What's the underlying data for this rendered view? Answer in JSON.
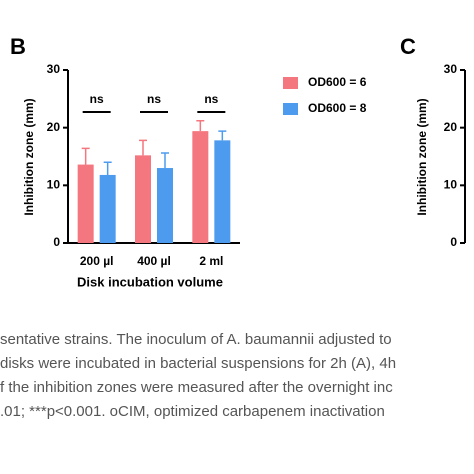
{
  "chart_data": [
    {
      "type": "bar",
      "panel": "B",
      "x_label": "Disk incubation volume",
      "y_label": "Inhibition zone (mm)",
      "categories": [
        "200 µl",
        "400 µl",
        "2 ml"
      ],
      "series": [
        {
          "name": "OD600 = 6",
          "color": "#f4777f",
          "values": [
            13.6,
            15.2,
            19.4
          ],
          "errors": [
            2.8,
            2.6,
            1.8
          ]
        },
        {
          "name": "OD600 = 8",
          "color": "#4d9bef",
          "values": [
            11.8,
            13.0,
            17.8
          ],
          "errors": [
            2.2,
            2.6,
            1.6
          ]
        }
      ],
      "annotations": [
        "ns",
        "ns",
        "ns"
      ],
      "ylim": [
        0,
        30
      ],
      "yticks": [
        0,
        10,
        20,
        30
      ],
      "legend": "right"
    },
    {
      "type": "bar",
      "panel": "C",
      "y_label": "Inhibition zone (mm)",
      "ylim": [
        0,
        30
      ],
      "yticks": [
        0,
        10,
        20,
        30
      ]
    }
  ],
  "caption_lines": [
    "sentative strains. The inoculum of A. baumannii adjusted to",
    "disks were incubated in bacterial suspensions for 2h (A), 4h",
    "f the inhibition zones were measured after the overnight inc",
    ".01; ***p<0.001. oCIM, optimized carbapenem inactivation"
  ]
}
